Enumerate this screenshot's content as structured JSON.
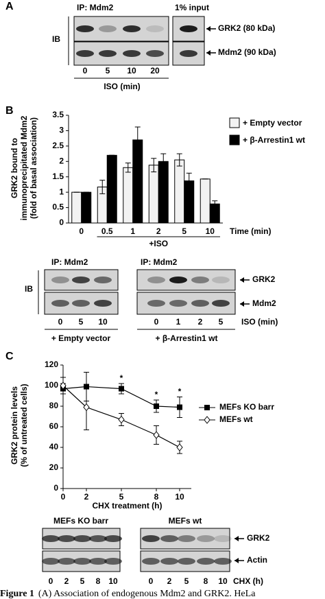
{
  "chart_data": [
    {
      "type": "bar",
      "panel_label": "B",
      "ylabel": [
        "GRK2 bound to",
        "immunoprecipitated Mdm2",
        "(fold of basal association)"
      ],
      "xlabel": "Time (min)",
      "x_group_label": "+ISO",
      "categories": [
        "0",
        "0.5",
        "1",
        "2",
        "5",
        "10"
      ],
      "series": [
        {
          "name": "+ Empty vector",
          "color": "#f2f2f2",
          "values": [
            1,
            1.17,
            1.8,
            1.88,
            2.05,
            1.43
          ],
          "errors": [
            0,
            0.22,
            0.15,
            0.22,
            0.2,
            0
          ]
        },
        {
          "name": "+ β-Arrestin1 wt",
          "color": "#000000",
          "values": [
            1,
            2.2,
            2.7,
            2.0,
            1.37,
            0.62
          ],
          "errors": [
            0,
            0,
            0.42,
            0.25,
            0.25,
            0.1
          ]
        }
      ],
      "ylim": [
        0,
        3.5
      ],
      "yticks": [
        0,
        0.5,
        1,
        1.5,
        2,
        2.5,
        3,
        3.5
      ],
      "grid": false
    },
    {
      "type": "line",
      "panel_label": "C",
      "ylabel": [
        "GRK2 protein levels",
        "(% of untreated cells)"
      ],
      "xlabel": "CHX treatment (h)",
      "x": [
        0,
        2,
        5,
        8,
        10
      ],
      "series": [
        {
          "name": "MEFs KO barr",
          "color": "#000000",
          "marker": "square",
          "marker_fill": "#000000",
          "values": [
            97,
            99,
            97,
            80,
            79
          ],
          "errors": [
            5,
            14,
            5,
            6,
            10
          ]
        },
        {
          "name": "MEFs wt",
          "color": "#000000",
          "marker": "diamond",
          "marker_fill": "#ffffff",
          "values": [
            100,
            79,
            67,
            52,
            40
          ],
          "errors": [
            8,
            22,
            6,
            9,
            6
          ]
        }
      ],
      "annotations": [
        {
          "text": "*",
          "x": 5
        },
        {
          "text": "*",
          "x": 8
        },
        {
          "text": "*",
          "x": 10
        }
      ],
      "xlim": [
        0,
        11
      ],
      "ylim": [
        0,
        120
      ],
      "xticks": [
        0,
        2,
        5,
        8,
        10
      ],
      "yticks": [
        0,
        20,
        40,
        60,
        80,
        100,
        120
      ],
      "grid": false
    }
  ],
  "panel_a": {
    "label": "A",
    "ip_label": "IP: Mdm2",
    "input_label": "1% input",
    "ib": "IB",
    "bands": [
      "GRK2 (80 kDa)",
      "Mdm2 (90 kDa)"
    ],
    "lanes": [
      "0",
      "5",
      "10",
      "20"
    ],
    "lane_axis": "ISO (min)"
  },
  "panel_b_blots": {
    "left_ip": "IP: Mdm2",
    "right_ip": "IP: Mdm2",
    "ib": "IB",
    "bands": [
      "GRK2",
      "Mdm2"
    ],
    "left_lanes": [
      "0",
      "5",
      "10"
    ],
    "right_lanes": [
      "0",
      "1",
      "2",
      "5"
    ],
    "lane_axis": "ISO (min)",
    "left_condition": "+ Empty vector",
    "right_condition": "+ β-Arrestin1 wt"
  },
  "panel_c_blots": {
    "left_title": "MEFs KO barr",
    "right_title": "MEFs wt",
    "bands": [
      "GRK2",
      "Actin"
    ],
    "lanes": [
      "0",
      "2",
      "5",
      "8",
      "10"
    ],
    "lane_axis": "CHX (h)"
  },
  "caption": {
    "label": "Figure 1",
    "text": "(A) Association of endogenous Mdm2 and GRK2. HeLa"
  }
}
